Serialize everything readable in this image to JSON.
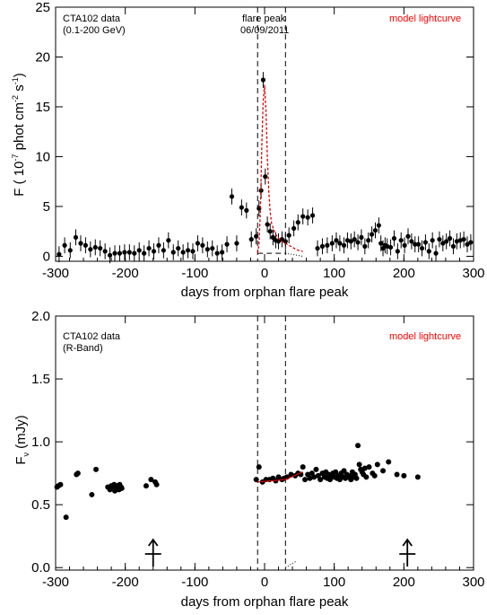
{
  "chart_data": [
    {
      "type": "scatter",
      "panel": "top",
      "ylabel_prefix": "F ( 10",
      "ylabel_exp1": "-7",
      "ylabel_mid": " phot cm",
      "ylabel_exp2": "-2",
      "ylabel_mid2": " s",
      "ylabel_exp3": "-1",
      "ylabel_suffix": ")",
      "xlabel": "days from orphan flare peak",
      "xlim": [
        -300,
        300
      ],
      "ylim": [
        -0.5,
        25
      ],
      "xticks": [
        -300,
        -200,
        -100,
        0,
        100,
        200,
        300
      ],
      "yticks": [
        0,
        5,
        10,
        15,
        20,
        25
      ],
      "ann_data_1": "CTA102 data",
      "ann_data_2": "(0.1-200 GeV)",
      "ann_peak_1": "flare peak",
      "ann_peak_2": "06/09/2011",
      "ann_model": "model lightcurve",
      "vlines": [
        -10,
        30
      ],
      "hline": {
        "x": [
          -10,
          30
        ],
        "y": 0.3
      },
      "series": [
        {
          "x": [
            -295,
            -287,
            -279,
            -271,
            -264,
            -257,
            -250,
            -243,
            -236,
            -229,
            -222,
            -215,
            -208,
            -201,
            -194,
            -187,
            -180,
            -173,
            -166,
            -159,
            -152,
            -145,
            -138,
            -131,
            -124,
            -117,
            -110,
            -103,
            -96,
            -89,
            -82,
            -75,
            -68,
            -61,
            -54,
            -47,
            -40,
            -33,
            -26,
            -19,
            -12,
            -8,
            -5,
            -2,
            1,
            4,
            8,
            12,
            16,
            20,
            25,
            30,
            35,
            42,
            48,
            55,
            62,
            69,
            76,
            83,
            90,
            97,
            103,
            108,
            114,
            119,
            124,
            129,
            134,
            139,
            144,
            149,
            154,
            159,
            164,
            167,
            170,
            173,
            176,
            181,
            186,
            191,
            196,
            201,
            206,
            211,
            216,
            221,
            226,
            231,
            236,
            241,
            246,
            251,
            256,
            261,
            266,
            271,
            276,
            281,
            286,
            291,
            296
          ],
          "y": [
            0.2,
            1.1,
            0.6,
            1.9,
            1.3,
            1.1,
            0.7,
            0.9,
            0.8,
            0.5,
            0.1,
            0.3,
            0.3,
            0.4,
            0.4,
            0.3,
            0.6,
            0.3,
            0.8,
            0.5,
            1.1,
            0.6,
            1.6,
            0.4,
            0.8,
            0.4,
            0.6,
            0.5,
            1.3,
            1.1,
            0.7,
            0.8,
            0.3,
            0.4,
            1.2,
            6.0,
            1.3,
            4.9,
            4.6,
            1.7,
            2.0,
            4.8,
            6.6,
            17.7,
            8.0,
            3.2,
            2.5,
            1.9,
            1.6,
            1.5,
            1.7,
            1.5,
            2.1,
            2.8,
            3.4,
            4.0,
            3.9,
            4.1,
            0.8,
            1.0,
            1.1,
            1.3,
            1.6,
            1.3,
            1.1,
            1.6,
            1.5,
            1.7,
            1.4,
            1.9,
            1.0,
            1.6,
            2.2,
            2.6,
            3.1,
            1.3,
            0.8,
            1.1,
            1.0,
            0.9,
            1.8,
            0.5,
            1.6,
            1.1,
            2.0,
            1.5,
            1.2,
            1.2,
            0.8,
            1.4,
            0.5,
            1.6,
            0.3,
            1.7,
            1.3,
            1.5,
            1.8,
            1.0,
            1.5,
            1.6,
            1.7,
            1.2,
            1.4
          ],
          "yerr": 0.8
        }
      ],
      "model": {
        "x": [
          -10,
          -8,
          -6,
          -4,
          -2,
          0,
          2,
          4,
          6,
          8,
          10,
          15,
          20,
          25,
          30,
          35,
          40,
          45,
          50,
          55
        ],
        "y": [
          0.3,
          1.2,
          4.5,
          11,
          15.5,
          17.2,
          14.5,
          10,
          6.5,
          4.5,
          3.3,
          2.3,
          1.8,
          1.5,
          1.3,
          1.1,
          0.9,
          0.7,
          0.55,
          0.5
        ]
      }
    },
    {
      "type": "scatter",
      "panel": "bottom",
      "ylabel_prefix": "F",
      "ylabel_sub": "ν",
      "ylabel_suffix": " (mJy)",
      "xlabel": "days from orphan flare peak",
      "xlim": [
        -300,
        300
      ],
      "ylim": [
        -0.02,
        2.0
      ],
      "xticks": [
        -300,
        -200,
        -100,
        0,
        100,
        200,
        300
      ],
      "yticks": [
        0.0,
        0.5,
        1.0,
        1.5,
        2.0
      ],
      "ann_data_1": "CTA102 data",
      "ann_data_2": "(R-Band)",
      "ann_model": "model lightcurve",
      "vlines": [
        -10,
        30
      ],
      "arrows_x": [
        -160,
        205
      ],
      "series": [
        {
          "x": [
            -298,
            -296,
            -293,
            -285,
            -270,
            -268,
            -248,
            -242,
            -225,
            -222,
            -220,
            -218,
            -216,
            -215,
            -214,
            -213,
            -212,
            -211,
            -210,
            -209,
            -208,
            -207,
            -206,
            -205,
            -170,
            -163,
            -157,
            -155,
            -12,
            -8,
            -3,
            2,
            7,
            12,
            16,
            20,
            25,
            28,
            32,
            38,
            44,
            48,
            52,
            55,
            58,
            62,
            65,
            68,
            71,
            74,
            77,
            80,
            83,
            86,
            88,
            90,
            92,
            94,
            96,
            98,
            100,
            102,
            104,
            106,
            108,
            110,
            112,
            114,
            116,
            118,
            120,
            122,
            124,
            126,
            128,
            130,
            132,
            134,
            136,
            138,
            140,
            142,
            144,
            146,
            150,
            155,
            158,
            162,
            170,
            178,
            190,
            200,
            220
          ],
          "y": [
            0.64,
            0.65,
            0.66,
            0.4,
            0.74,
            0.75,
            0.58,
            0.78,
            0.64,
            0.62,
            0.65,
            0.63,
            0.66,
            0.61,
            0.64,
            0.62,
            0.65,
            0.63,
            0.64,
            0.62,
            0.66,
            0.63,
            0.64,
            0.63,
            0.65,
            0.7,
            0.68,
            0.66,
            0.7,
            0.8,
            0.68,
            0.7,
            0.7,
            0.71,
            0.69,
            0.72,
            0.7,
            0.71,
            0.72,
            0.74,
            0.73,
            0.75,
            0.74,
            0.8,
            0.7,
            0.74,
            0.71,
            0.75,
            0.72,
            0.78,
            0.73,
            0.7,
            0.75,
            0.72,
            0.76,
            0.71,
            0.74,
            0.7,
            0.73,
            0.75,
            0.72,
            0.76,
            0.71,
            0.73,
            0.7,
            0.75,
            0.72,
            0.77,
            0.71,
            0.74,
            0.72,
            0.73,
            0.7,
            0.76,
            0.72,
            0.74,
            0.71,
            0.97,
            0.82,
            0.78,
            0.76,
            0.74,
            0.79,
            0.72,
            0.8,
            0.75,
            0.73,
            0.82,
            0.77,
            0.84,
            0.74,
            0.73,
            0.72
          ],
          "yerr": 0.015
        }
      ],
      "model": {
        "x": [
          -10,
          30,
          55
        ],
        "y": [
          0.68,
          0.7,
          0.76
        ]
      }
    }
  ]
}
